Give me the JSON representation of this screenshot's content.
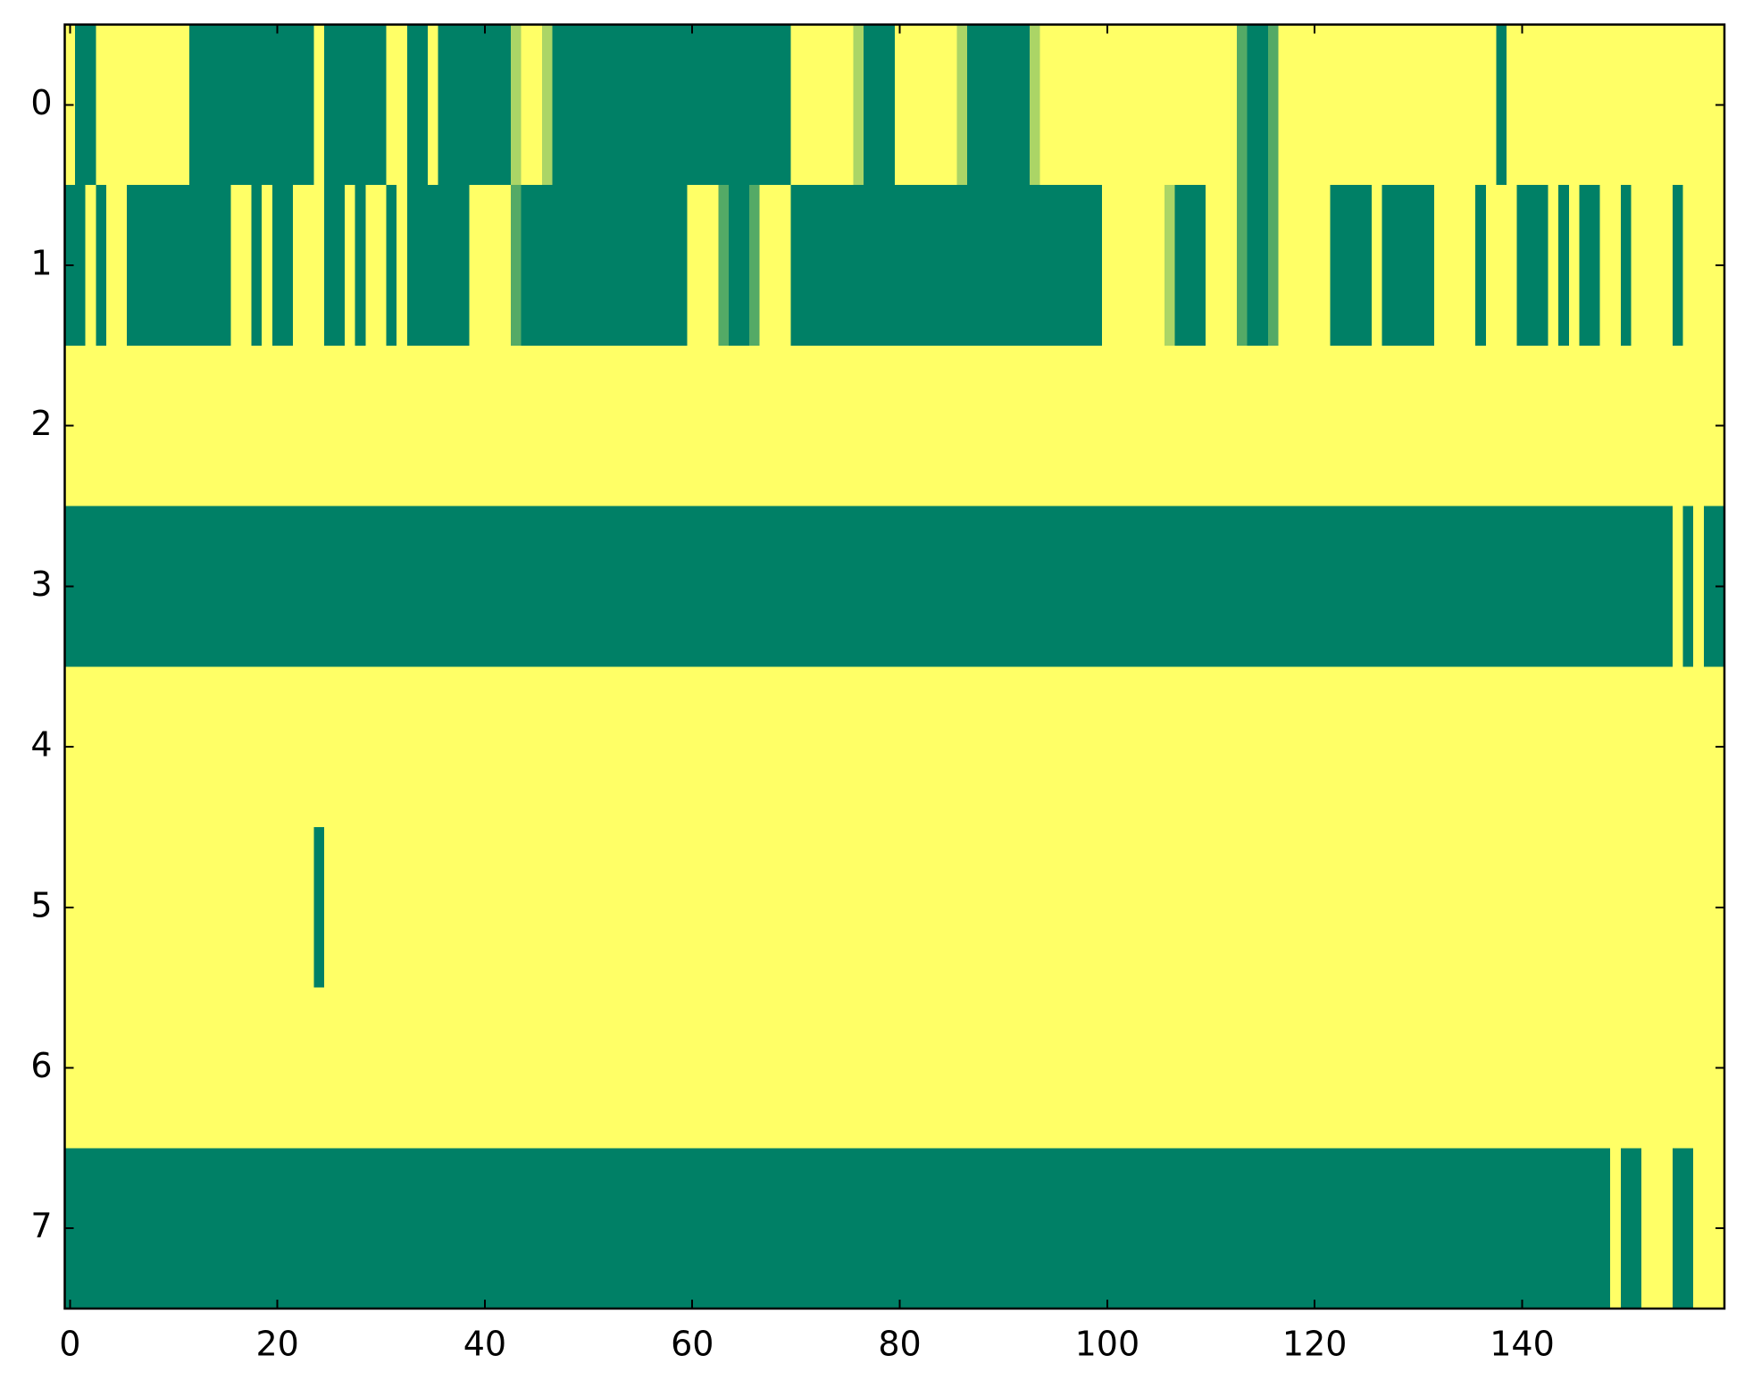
{
  "chart_data": {
    "type": "heatmap",
    "colormap": "summer",
    "xlim": [
      -0.5,
      159.5
    ],
    "ylim": [
      7.5,
      -0.5
    ],
    "xticks": [
      0,
      20,
      40,
      60,
      80,
      100,
      120,
      140
    ],
    "yticks": [
      0,
      1,
      2,
      3,
      4,
      5,
      6,
      7
    ],
    "z": [
      [
        1,
        0,
        0,
        1,
        1,
        1,
        1,
        1,
        1,
        1,
        1,
        1,
        0,
        0,
        0,
        0,
        0,
        0,
        0,
        0,
        0,
        0,
        0,
        0,
        1,
        0,
        0,
        0,
        0,
        0,
        0,
        1,
        1,
        0,
        0,
        1,
        0,
        0,
        0,
        0,
        0,
        0,
        0,
        0.67,
        1,
        1,
        0.67,
        0,
        0,
        0,
        0,
        0,
        0,
        0,
        0,
        0,
        0,
        0,
        0,
        0,
        0,
        0,
        0,
        0,
        0,
        0,
        0,
        0,
        0,
        0,
        1,
        1,
        1,
        1,
        1,
        1,
        0.67,
        0,
        0,
        0,
        1,
        1,
        1,
        1,
        1,
        1,
        0.67,
        0,
        0,
        0,
        0,
        0,
        0,
        0.67,
        1,
        1,
        1,
        1,
        1,
        1,
        1,
        1,
        1,
        1,
        1,
        1,
        1,
        1,
        1,
        1,
        1,
        1,
        1,
        0.33,
        0,
        0,
        0.33,
        1,
        1,
        1,
        1,
        1,
        1,
        1,
        1,
        1,
        1,
        1,
        1,
        1,
        1,
        1,
        1,
        1,
        1,
        1,
        1,
        1,
        0,
        1,
        1,
        1,
        1,
        1,
        1,
        1,
        1,
        1,
        1,
        1,
        1,
        1,
        1,
        1,
        1,
        1,
        1,
        1,
        1,
        1
      ],
      [
        0,
        0,
        1,
        0,
        1,
        1,
        0,
        0,
        0,
        0,
        0,
        0,
        0,
        0,
        0,
        0,
        1,
        1,
        0,
        1,
        0,
        0,
        1,
        1,
        1,
        0,
        0,
        1,
        0,
        1,
        1,
        0,
        1,
        0,
        0,
        0,
        0,
        0,
        0,
        1,
        1,
        1,
        1,
        0.33,
        0,
        0,
        0,
        0,
        0,
        0,
        0,
        0,
        0,
        0,
        0,
        0,
        0,
        0,
        0,
        0,
        1,
        1,
        1,
        0.33,
        0,
        0,
        0.33,
        1,
        1,
        1,
        0,
        0,
        0,
        0,
        0,
        0,
        0,
        0,
        0,
        0,
        0,
        0,
        0,
        0,
        0,
        0,
        0,
        0,
        0,
        0,
        0,
        0,
        0,
        0,
        0,
        0,
        0,
        0,
        0,
        0,
        1,
        1,
        1,
        1,
        1,
        1,
        0.67,
        0,
        0,
        0,
        1,
        1,
        1,
        0.33,
        0,
        0,
        0.33,
        1,
        1,
        1,
        1,
        1,
        0,
        0,
        0,
        0,
        1,
        0,
        0,
        0,
        0,
        0,
        1,
        1,
        1,
        1,
        0,
        1,
        1,
        1,
        0,
        0,
        0,
        1,
        0,
        1,
        0,
        0,
        1,
        1,
        0,
        1,
        1,
        1,
        1,
        0,
        1,
        1,
        1,
        1
      ],
      [
        1,
        1,
        1,
        1,
        1,
        1,
        1,
        1,
        1,
        1,
        1,
        1,
        1,
        1,
        1,
        1,
        1,
        1,
        1,
        1,
        1,
        1,
        1,
        1,
        1,
        1,
        1,
        1,
        1,
        1,
        1,
        1,
        1,
        1,
        1,
        1,
        1,
        1,
        1,
        1,
        1,
        1,
        1,
        1,
        1,
        1,
        1,
        1,
        1,
        1,
        1,
        1,
        1,
        1,
        1,
        1,
        1,
        1,
        1,
        1,
        1,
        1,
        1,
        1,
        1,
        1,
        1,
        1,
        1,
        1,
        1,
        1,
        1,
        1,
        1,
        1,
        1,
        1,
        1,
        1,
        1,
        1,
        1,
        1,
        1,
        1,
        1,
        1,
        1,
        1,
        1,
        1,
        1,
        1,
        1,
        1,
        1,
        1,
        1,
        1,
        1,
        1,
        1,
        1,
        1,
        1,
        1,
        1,
        1,
        1,
        1,
        1,
        1,
        1,
        1,
        1,
        1,
        1,
        1,
        1,
        1,
        1,
        1,
        1,
        1,
        1,
        1,
        1,
        1,
        1,
        1,
        1,
        1,
        1,
        1,
        1,
        1,
        1,
        1,
        1,
        1,
        1,
        1,
        1,
        1,
        1,
        1,
        1,
        1,
        1,
        1,
        1,
        1,
        1,
        1,
        1,
        1,
        1,
        1,
        1
      ],
      [
        0,
        0,
        0,
        0,
        0,
        0,
        0,
        0,
        0,
        0,
        0,
        0,
        0,
        0,
        0,
        0,
        0,
        0,
        0,
        0,
        0,
        0,
        0,
        0,
        0,
        0,
        0,
        0,
        0,
        0,
        0,
        0,
        0,
        0,
        0,
        0,
        0,
        0,
        0,
        0,
        0,
        0,
        0,
        0,
        0,
        0,
        0,
        0,
        0,
        0,
        0,
        0,
        0,
        0,
        0,
        0,
        0,
        0,
        0,
        0,
        0,
        0,
        0,
        0,
        0,
        0,
        0,
        0,
        0,
        0,
        0,
        0,
        0,
        0,
        0,
        0,
        0,
        0,
        0,
        0,
        0,
        0,
        0,
        0,
        0,
        0,
        0,
        0,
        0,
        0,
        0,
        0,
        0,
        0,
        0,
        0,
        0,
        0,
        0,
        0,
        0,
        0,
        0,
        0,
        0,
        0,
        0,
        0,
        0,
        0,
        0,
        0,
        0,
        0,
        0,
        0,
        0,
        0,
        0,
        0,
        0,
        0,
        0,
        0,
        0,
        0,
        0,
        0,
        0,
        0,
        0,
        0,
        0,
        0,
        0,
        0,
        0,
        0,
        0,
        0,
        0,
        0,
        0,
        0,
        0,
        0,
        0,
        0,
        0,
        0,
        0,
        0,
        0,
        0,
        0,
        1,
        0,
        1,
        0,
        0
      ],
      [
        1,
        1,
        1,
        1,
        1,
        1,
        1,
        1,
        1,
        1,
        1,
        1,
        1,
        1,
        1,
        1,
        1,
        1,
        1,
        1,
        1,
        1,
        1,
        1,
        1,
        1,
        1,
        1,
        1,
        1,
        1,
        1,
        1,
        1,
        1,
        1,
        1,
        1,
        1,
        1,
        1,
        1,
        1,
        1,
        1,
        1,
        1,
        1,
        1,
        1,
        1,
        1,
        1,
        1,
        1,
        1,
        1,
        1,
        1,
        1,
        1,
        1,
        1,
        1,
        1,
        1,
        1,
        1,
        1,
        1,
        1,
        1,
        1,
        1,
        1,
        1,
        1,
        1,
        1,
        1,
        1,
        1,
        1,
        1,
        1,
        1,
        1,
        1,
        1,
        1,
        1,
        1,
        1,
        1,
        1,
        1,
        1,
        1,
        1,
        1,
        1,
        1,
        1,
        1,
        1,
        1,
        1,
        1,
        1,
        1,
        1,
        1,
        1,
        1,
        1,
        1,
        1,
        1,
        1,
        1,
        1,
        1,
        1,
        1,
        1,
        1,
        1,
        1,
        1,
        1,
        1,
        1,
        1,
        1,
        1,
        1,
        1,
        1,
        1,
        1,
        1,
        1,
        1,
        1,
        1,
        1,
        1,
        1,
        1,
        1,
        1,
        1,
        1,
        1,
        1,
        1,
        1,
        1,
        1,
        1
      ],
      [
        1,
        1,
        1,
        1,
        1,
        1,
        1,
        1,
        1,
        1,
        1,
        1,
        1,
        1,
        1,
        1,
        1,
        1,
        1,
        1,
        1,
        1,
        1,
        1,
        0,
        1,
        1,
        1,
        1,
        1,
        1,
        1,
        1,
        1,
        1,
        1,
        1,
        1,
        1,
        1,
        1,
        1,
        1,
        1,
        1,
        1,
        1,
        1,
        1,
        1,
        1,
        1,
        1,
        1,
        1,
        1,
        1,
        1,
        1,
        1,
        1,
        1,
        1,
        1,
        1,
        1,
        1,
        1,
        1,
        1,
        1,
        1,
        1,
        1,
        1,
        1,
        1,
        1,
        1,
        1,
        1,
        1,
        1,
        1,
        1,
        1,
        1,
        1,
        1,
        1,
        1,
        1,
        1,
        1,
        1,
        1,
        1,
        1,
        1,
        1,
        1,
        1,
        1,
        1,
        1,
        1,
        1,
        1,
        1,
        1,
        1,
        1,
        1,
        1,
        1,
        1,
        1,
        1,
        1,
        1,
        1,
        1,
        1,
        1,
        1,
        1,
        1,
        1,
        1,
        1,
        1,
        1,
        1,
        1,
        1,
        1,
        1,
        1,
        1,
        1,
        1,
        1,
        1,
        1,
        1,
        1,
        1,
        1,
        1,
        1,
        1,
        1,
        1,
        1,
        1,
        1,
        1,
        1,
        1,
        1
      ],
      [
        1,
        1,
        1,
        1,
        1,
        1,
        1,
        1,
        1,
        1,
        1,
        1,
        1,
        1,
        1,
        1,
        1,
        1,
        1,
        1,
        1,
        1,
        1,
        1,
        1,
        1,
        1,
        1,
        1,
        1,
        1,
        1,
        1,
        1,
        1,
        1,
        1,
        1,
        1,
        1,
        1,
        1,
        1,
        1,
        1,
        1,
        1,
        1,
        1,
        1,
        1,
        1,
        1,
        1,
        1,
        1,
        1,
        1,
        1,
        1,
        1,
        1,
        1,
        1,
        1,
        1,
        1,
        1,
        1,
        1,
        1,
        1,
        1,
        1,
        1,
        1,
        1,
        1,
        1,
        1,
        1,
        1,
        1,
        1,
        1,
        1,
        1,
        1,
        1,
        1,
        1,
        1,
        1,
        1,
        1,
        1,
        1,
        1,
        1,
        1,
        1,
        1,
        1,
        1,
        1,
        1,
        1,
        1,
        1,
        1,
        1,
        1,
        1,
        1,
        1,
        1,
        1,
        1,
        1,
        1,
        1,
        1,
        1,
        1,
        1,
        1,
        1,
        1,
        1,
        1,
        1,
        1,
        1,
        1,
        1,
        1,
        1,
        1,
        1,
        1,
        1,
        1,
        1,
        1,
        1,
        1,
        1,
        1,
        1,
        1,
        1,
        1,
        1,
        1,
        1,
        1,
        1,
        1,
        1,
        1
      ],
      [
        0,
        0,
        0,
        0,
        0,
        0,
        0,
        0,
        0,
        0,
        0,
        0,
        0,
        0,
        0,
        0,
        0,
        0,
        0,
        0,
        0,
        0,
        0,
        0,
        0,
        0,
        0,
        0,
        0,
        0,
        0,
        0,
        0,
        0,
        0,
        0,
        0,
        0,
        0,
        0,
        0,
        0,
        0,
        0,
        0,
        0,
        0,
        0,
        0,
        0,
        0,
        0,
        0,
        0,
        0,
        0,
        0,
        0,
        0,
        0,
        0,
        0,
        0,
        0,
        0,
        0,
        0,
        0,
        0,
        0,
        0,
        0,
        0,
        0,
        0,
        0,
        0,
        0,
        0,
        0,
        0,
        0,
        0,
        0,
        0,
        0,
        0,
        0,
        0,
        0,
        0,
        0,
        0,
        0,
        0,
        0,
        0,
        0,
        0,
        0,
        0,
        0,
        0,
        0,
        0,
        0,
        0,
        0,
        0,
        0,
        0,
        0,
        0,
        0,
        0,
        0,
        0,
        0,
        0,
        0,
        0,
        0,
        0,
        0,
        0,
        0,
        0,
        0,
        0,
        0,
        0,
        0,
        0,
        0,
        0,
        0,
        0,
        0,
        0,
        0,
        0,
        0,
        0,
        0,
        0,
        0,
        0,
        0,
        0,
        1,
        0,
        0,
        1,
        1,
        1,
        0,
        0,
        1,
        1,
        1
      ]
    ]
  }
}
